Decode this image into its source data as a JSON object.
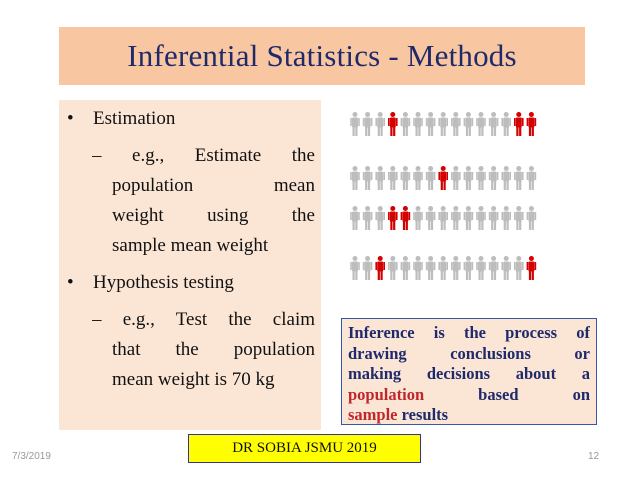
{
  "slide": {
    "title": "Inferential Statistics - Methods",
    "bullets": [
      {
        "label": "Estimation",
        "sub_lines": [
          "– e.g.,  Estimate  the",
          "population  mean",
          "weight  using  the",
          "sample mean weight"
        ]
      },
      {
        "label": "Hypothesis testing",
        "sub_lines": [
          "– e.g.,  Test  the  claim",
          "that  the  population",
          "mean weight is 70 kg"
        ]
      }
    ],
    "info_box": {
      "lines": [
        "Inference is the process of",
        "drawing conclusions or",
        "making decisions about a"
      ],
      "line4_word": "population",
      "line4_rest": "based on",
      "line5_word": "sample",
      "line5_rest": " results"
    },
    "footer_label": "DR SOBIA JSMU 2019",
    "date": "7/3/2019",
    "page_number": "12"
  },
  "figure": {
    "rows": [
      [
        0,
        0,
        0,
        1,
        0,
        0,
        0,
        0,
        0,
        0,
        0,
        0,
        0,
        1,
        1
      ],
      [
        0,
        0,
        0,
        0,
        0,
        0,
        0,
        1,
        0,
        0,
        0,
        0,
        0,
        0,
        0
      ],
      [
        0,
        0,
        0,
        1,
        1,
        0,
        0,
        0,
        0,
        0,
        0,
        0,
        0,
        0,
        0
      ],
      [
        0,
        0,
        1,
        0,
        0,
        0,
        0,
        0,
        0,
        0,
        0,
        0,
        0,
        0,
        1
      ]
    ],
    "colors": {
      "grey": "#bdbdbd",
      "red": "#d40000"
    }
  }
}
